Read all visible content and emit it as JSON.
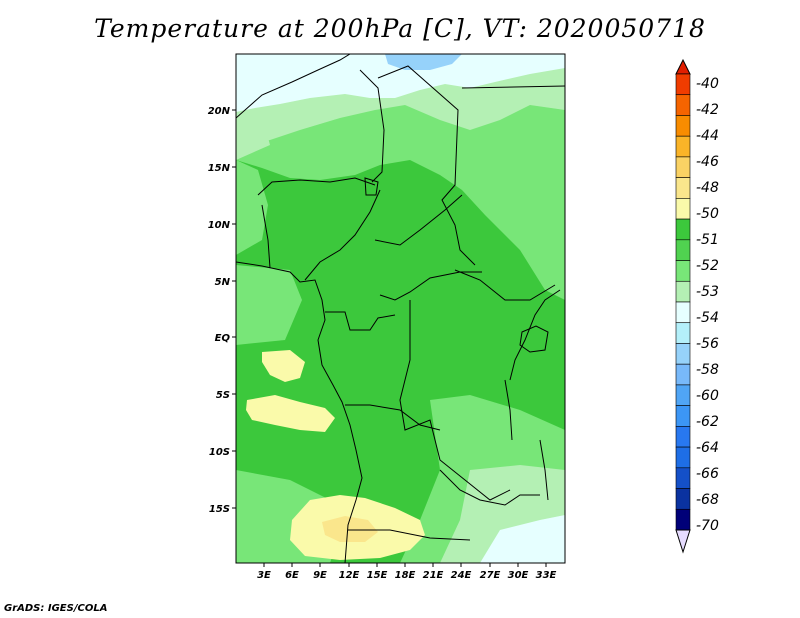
{
  "title": "Temperature at 200hPa [C], VT: 2020050718",
  "credit": "GrADS: IGES/COLA",
  "colors": {
    "background": "#ffffff",
    "base_field": "#3cc83c",
    "light_green": "#78e678",
    "pale_green": "#b4f0b4",
    "pale_cyan": "#e6ffff",
    "light_blue": "#96d2fa",
    "pale_yellow": "#fafaaa",
    "light_yellow": "#fae68c"
  },
  "map": {
    "lat_labels": [
      "20N",
      "15N",
      "10N",
      "5N",
      "EQ",
      "5S",
      "10S",
      "15S"
    ],
    "lon_labels": [
      "3E",
      "6E",
      "9E",
      "12E",
      "15E",
      "18E",
      "21E",
      "24E",
      "27E",
      "30E",
      "33E"
    ]
  },
  "legend": {
    "top_color": "#e11e00",
    "bottom_color": "#e6dcff",
    "entries": [
      {
        "label": "-40",
        "color": "#f03c00"
      },
      {
        "label": "-42",
        "color": "#f56400"
      },
      {
        "label": "-44",
        "color": "#f88c00"
      },
      {
        "label": "-46",
        "color": "#fab428"
      },
      {
        "label": "-48",
        "color": "#fad264"
      },
      {
        "label": "-50",
        "color": "#fae68c"
      },
      {
        "label": "-51",
        "color": "#fafaaa"
      },
      {
        "label": "-52",
        "color": "#3cc83c"
      },
      {
        "label": "-53",
        "color": "#50d250"
      },
      {
        "label": "-54",
        "color": "#78e678"
      },
      {
        "label": "-56",
        "color": "#b4f0b4"
      },
      {
        "label": "-58",
        "color": "#e6ffff"
      },
      {
        "label": "-60",
        "color": "#b4f0fa"
      },
      {
        "label": "-62",
        "color": "#96d2fa"
      },
      {
        "label": "-64",
        "color": "#78b9fa"
      },
      {
        "label": "-66",
        "color": "#50a5f5"
      },
      {
        "label": "-68",
        "color": "#3c96f5"
      },
      {
        "label": "-70",
        "color": "#2878f0"
      },
      {
        "label": "",
        "color": "#1e6ee6"
      },
      {
        "label": "",
        "color": "#1450c8"
      },
      {
        "label": "",
        "color": "#0a32a0"
      },
      {
        "label": "",
        "color": "#000078"
      }
    ]
  }
}
